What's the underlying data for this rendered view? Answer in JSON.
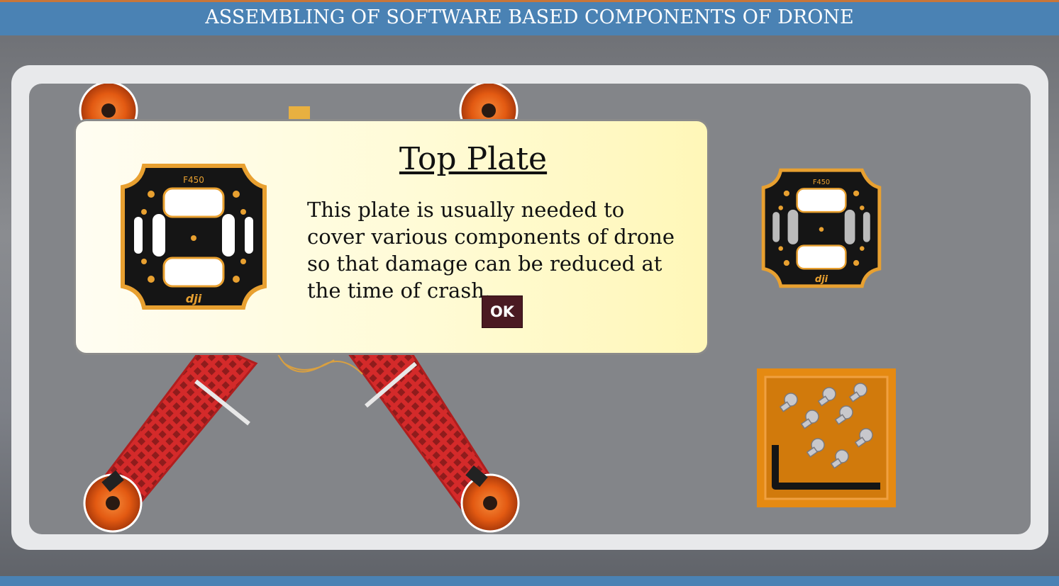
{
  "header": {
    "title": "ASSEMBLING OF SOFTWARE BASED COMPONENTS OF DRONE"
  },
  "modal": {
    "title": "Top Plate",
    "description": "This plate is usually needed to cover various components of drone so that damage can be reduced at the time of crash.",
    "ok_label": "OK"
  },
  "plate_labels": {
    "model": "F450",
    "brand": "dji"
  },
  "colors": {
    "header_bar": "#4a82b4",
    "frame_arm_red": "#d42a2a",
    "motor_orange": "#e8621a",
    "plate_black": "#151515",
    "plate_gold": "#e8a030",
    "ok_button": "#4a1a22"
  },
  "icons": [
    "top-plate-icon",
    "screw-kit-icon",
    "drone-frame-icon"
  ]
}
